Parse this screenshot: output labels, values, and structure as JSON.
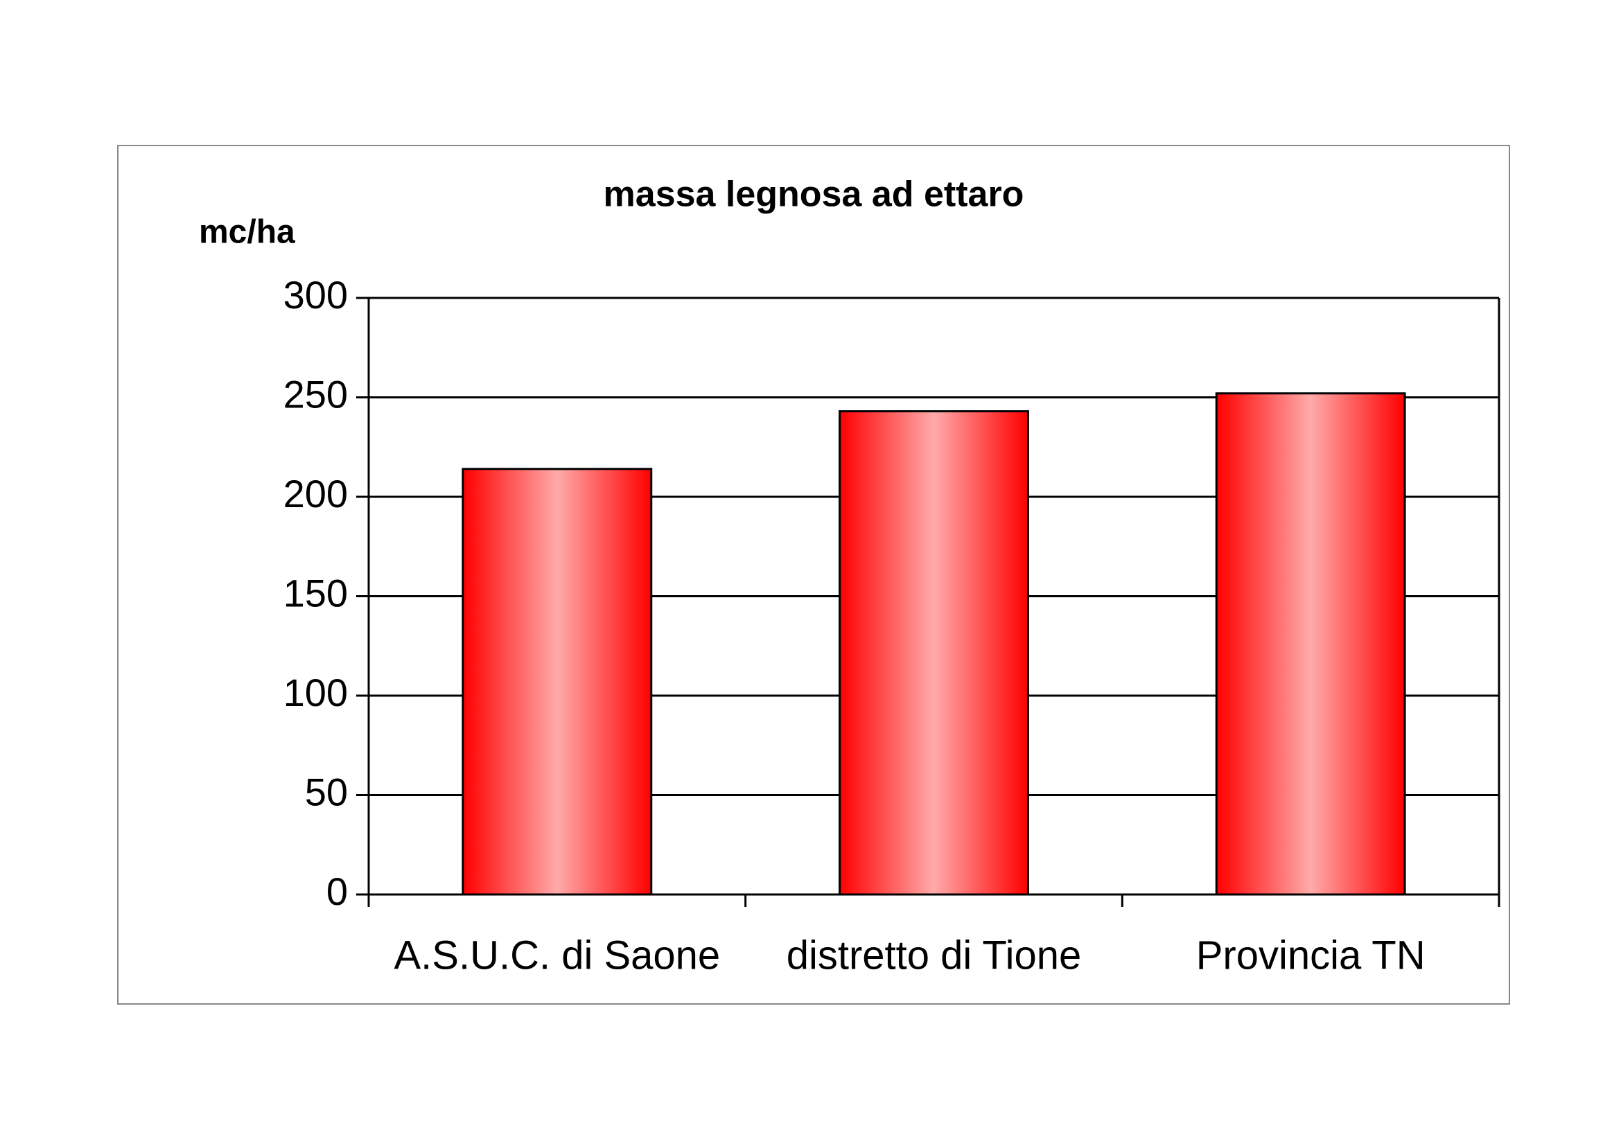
{
  "chart_data": {
    "type": "bar",
    "title": "massa legnosa ad ettaro",
    "y_label": "mc/ha",
    "categories": [
      "A.S.U.C. di Saone",
      "distretto di Tione",
      "Provincia TN"
    ],
    "values": [
      214,
      243,
      252
    ],
    "color": "#ff0000",
    "ylim": [
      0,
      300
    ],
    "yticks": [
      0,
      50,
      100,
      150,
      200,
      250,
      300
    ],
    "grid": true
  }
}
